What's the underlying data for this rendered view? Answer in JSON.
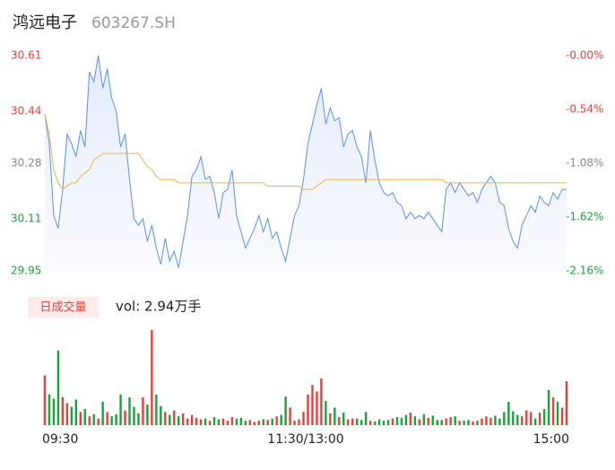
{
  "chart_data": {
    "type": "intraday",
    "title": "鸿远电子",
    "subtitle": "603267.SH",
    "ylim": [
      29.95,
      30.61
    ],
    "yticks": [
      29.95,
      30.11,
      30.28,
      30.44,
      30.61
    ],
    "y2lim": [
      -2.16,
      0
    ],
    "y2ticks": [
      {
        "value": -2.16,
        "label": "-2.16%"
      },
      {
        "value": -1.62,
        "label": "-1.62%"
      },
      {
        "value": -1.08,
        "label": "-1.08%"
      },
      {
        "value": -0.54,
        "label": "-0.54%"
      },
      {
        "value": 0,
        "label": "-0.00%"
      }
    ],
    "time_labels": [
      "09:30",
      "11:30/13:00",
      "15:00"
    ],
    "series": [
      {
        "color": "#5b8ff9",
        "values": [
          30.43,
          30.34,
          30.12,
          30.08,
          30.2,
          30.37,
          30.34,
          30.3,
          30.38,
          30.33,
          30.56,
          30.53,
          30.61,
          30.51,
          30.57,
          30.48,
          30.44,
          30.33,
          30.37,
          30.23,
          30.11,
          30.09,
          30.11,
          30.04,
          30.09,
          30.02,
          29.97,
          30.05,
          29.98,
          30.01,
          29.96,
          30.04,
          30.12,
          30.24,
          30.26,
          30.3,
          30.23,
          30.24,
          30.19,
          30.11,
          30.19,
          30.2,
          30.26,
          30.12,
          30.07,
          30.02,
          30.05,
          30.08,
          30.12,
          30.07,
          30.11,
          30.05,
          30.07,
          30.02,
          29.98,
          30.05,
          30.12,
          30.15,
          30.23,
          30.34,
          30.4,
          30.46,
          30.51,
          30.4,
          30.45,
          30.41,
          30.42,
          30.33,
          30.37,
          30.38,
          30.33,
          30.3,
          30.22,
          30.38,
          30.29,
          30.22,
          30.19,
          30.18,
          30.19,
          30.16,
          30.15,
          30.11,
          30.13,
          30.11,
          30.12,
          30.11,
          30.13,
          30.11,
          30.09,
          30.07,
          30.2,
          30.22,
          30.19,
          30.22,
          30.2,
          30.18,
          30.19,
          30.16,
          30.2,
          30.22,
          30.24,
          30.22,
          30.16,
          30.15,
          30.08,
          30.04,
          30.02,
          30.09,
          30.12,
          30.15,
          30.13,
          30.18,
          30.16,
          30.15,
          30.19,
          30.17,
          30.2,
          30.2
        ]
      },
      {
        "color": "#f5b041",
        "values": [
          30.43,
          30.37,
          30.26,
          30.22,
          30.2,
          30.21,
          30.22,
          30.22,
          30.24,
          30.25,
          30.26,
          30.29,
          30.3,
          30.31,
          30.31,
          30.31,
          30.31,
          30.31,
          30.31,
          30.31,
          30.31,
          30.31,
          30.29,
          30.27,
          30.26,
          30.24,
          30.23,
          30.23,
          30.23,
          30.23,
          30.22,
          30.22,
          30.22,
          30.22,
          30.22,
          30.22,
          30.22,
          30.22,
          30.22,
          30.22,
          30.22,
          30.22,
          30.22,
          30.22,
          30.22,
          30.22,
          30.22,
          30.22,
          30.22,
          30.22,
          30.21,
          30.21,
          30.21,
          30.21,
          30.21,
          30.21,
          30.21,
          30.21,
          30.2,
          30.2,
          30.2,
          30.21,
          30.22,
          30.23,
          30.23,
          30.23,
          30.23,
          30.23,
          30.23,
          30.23,
          30.23,
          30.23,
          30.23,
          30.23,
          30.23,
          30.23,
          30.23,
          30.23,
          30.23,
          30.23,
          30.23,
          30.23,
          30.23,
          30.23,
          30.23,
          30.23,
          30.23,
          30.23,
          30.23,
          30.23,
          30.22,
          30.22,
          30.22,
          30.22,
          30.22,
          30.22,
          30.22,
          30.22,
          30.22,
          30.22,
          30.22,
          30.22,
          30.22,
          30.22,
          30.22,
          30.22,
          30.22,
          30.22,
          30.22,
          30.22,
          30.22,
          30.22,
          30.22,
          30.22,
          30.22,
          30.22,
          30.22,
          30.22
        ]
      }
    ],
    "volume": {
      "badge": "日成交量",
      "label": "vol: 2.94万手",
      "ylim": [
        0,
        1300
      ],
      "up_color": "#e8403a",
      "down_color": "#1aa33a",
      "values": [
        680,
        420,
        360,
        1020,
        380,
        300,
        250,
        350,
        180,
        220,
        120,
        150,
        90,
        320,
        180,
        120,
        150,
        420,
        200,
        380,
        250,
        160,
        380,
        280,
        1300,
        420,
        260,
        180,
        140,
        200,
        120,
        160,
        90,
        140,
        100,
        80,
        90,
        60,
        110,
        80,
        90,
        60,
        110,
        90,
        100,
        60,
        70,
        40,
        60,
        80,
        70,
        90,
        120,
        140,
        390,
        240,
        60,
        80,
        180,
        420,
        550,
        460,
        640,
        330,
        160,
        240,
        110,
        170,
        80,
        90,
        90,
        70,
        180,
        60,
        50,
        80,
        60,
        70,
        90,
        110,
        100,
        140,
        170,
        120,
        80,
        150,
        100,
        130,
        70,
        70,
        90,
        110,
        120,
        60,
        60,
        70,
        50,
        60,
        90,
        120,
        100,
        130,
        90,
        180,
        320,
        190,
        140,
        120,
        200,
        180,
        90,
        170,
        220,
        480,
        380,
        320,
        240,
        600
      ]
    }
  }
}
